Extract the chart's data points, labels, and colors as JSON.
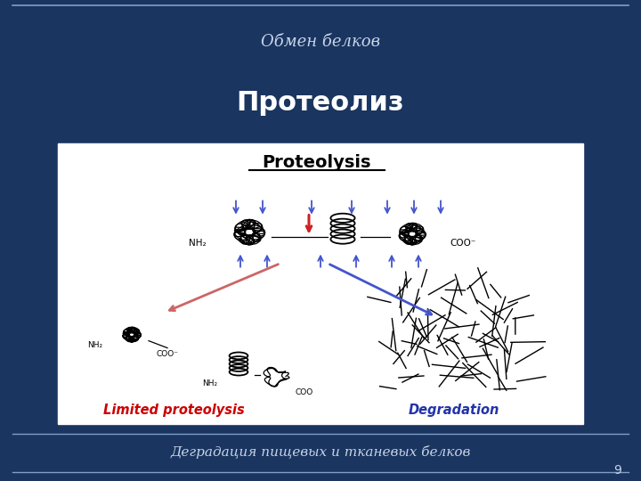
{
  "bg_color": "#1a3560",
  "slide_title": "Обмен белков",
  "main_title": "Протеолиз",
  "footer_text": "Деградация пищевых и тканевых белков",
  "page_number": "9",
  "content_bg": "#ffffff",
  "title_color": "#ffffff",
  "header_color": "#c8d4e8",
  "footer_color": "#c8d4e8",
  "line_color": "#7fa0c8",
  "proteolysis_label": "Proteolysis",
  "limited_label": "Limited proteolysis",
  "degradation_label": "Degradation",
  "limited_color": "#cc0000",
  "degradation_color": "#2233aa",
  "arrow_blue": "#4455cc",
  "arrow_red": "#cc3333"
}
